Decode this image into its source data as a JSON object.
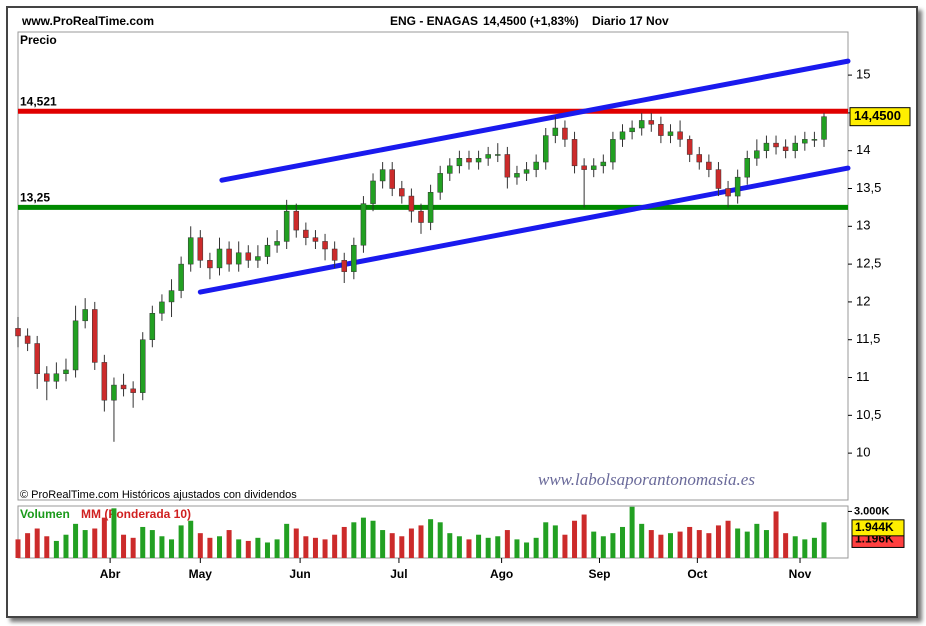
{
  "header": {
    "site": "www.ProRealTime.com",
    "instrument": "ENG - ENAGAS",
    "quote": "14,4500 (+1,83%)",
    "period": "Diario  17 Nov"
  },
  "chart_data": [
    {
      "type": "candlestick",
      "title": "Precio",
      "xlim": [
        0,
        86.5
      ],
      "xticks": [
        {
          "value": 9.6,
          "label": "Abr"
        },
        {
          "value": 19,
          "label": "May"
        },
        {
          "value": 29.4,
          "label": "Jun"
        },
        {
          "value": 39.7,
          "label": "Jul"
        },
        {
          "value": 50.4,
          "label": "Ago"
        },
        {
          "value": 60.6,
          "label": "Sep"
        },
        {
          "value": 70.8,
          "label": "Oct"
        },
        {
          "value": 81.5,
          "label": "Nov"
        }
      ],
      "ylim": [
        9.38,
        15.57
      ],
      "yticks": [
        10,
        {
          "value": 10.5,
          "label": "10,5"
        },
        11,
        {
          "value": 11.5,
          "label": "11,5"
        },
        12,
        {
          "value": 12.5,
          "label": "12,5"
        },
        13,
        {
          "value": 13.5,
          "label": "13,5"
        },
        14,
        {
          "value": 14.5,
          "label": "14,5"
        },
        15
      ],
      "open": [
        11.65,
        11.55,
        11.45,
        11.05,
        10.95,
        11.05,
        11.1,
        11.75,
        11.9,
        11.2,
        10.7,
        10.9,
        10.85,
        10.8,
        11.5,
        11.85,
        12.0,
        12.15,
        12.5,
        12.85,
        12.55,
        12.45,
        12.7,
        12.5,
        12.65,
        12.55,
        12.6,
        12.75,
        12.8,
        13.2,
        12.95,
        12.85,
        12.8,
        12.7,
        12.55,
        12.4,
        12.75,
        13.3,
        13.6,
        13.75,
        13.5,
        13.4,
        13.2,
        13.05,
        13.45,
        13.7,
        13.8,
        13.9,
        13.85,
        13.9,
        13.95,
        13.95,
        13.65,
        13.7,
        13.75,
        13.85,
        14.2,
        14.3,
        14.15,
        13.8,
        13.75,
        13.8,
        13.85,
        14.15,
        14.25,
        14.3,
        14.4,
        14.35,
        14.2,
        14.25,
        14.15,
        13.95,
        13.85,
        13.75,
        13.5,
        13.4,
        13.65,
        13.9,
        14.0,
        14.1,
        14.05,
        14.0,
        14.1,
        14.15,
        14.15
      ],
      "high": [
        11.8,
        11.65,
        11.55,
        11.15,
        11.2,
        11.25,
        11.95,
        12.05,
        12.0,
        11.3,
        11.0,
        11.05,
        10.95,
        11.6,
        11.95,
        12.1,
        12.3,
        12.6,
        13.0,
        12.95,
        12.65,
        12.85,
        12.8,
        12.8,
        12.75,
        12.75,
        12.85,
        12.95,
        13.35,
        13.3,
        13.05,
        12.95,
        12.9,
        12.8,
        12.65,
        12.85,
        13.4,
        13.7,
        13.85,
        13.85,
        13.6,
        13.5,
        13.3,
        13.55,
        13.8,
        13.9,
        14.0,
        14.0,
        14.0,
        14.05,
        14.1,
        14.05,
        13.8,
        13.85,
        13.95,
        14.3,
        14.45,
        14.4,
        14.25,
        13.9,
        13.9,
        13.95,
        14.25,
        14.35,
        14.4,
        14.5,
        14.5,
        14.45,
        14.35,
        14.4,
        14.2,
        14.05,
        13.95,
        13.85,
        13.6,
        13.75,
        14.0,
        14.15,
        14.2,
        14.2,
        14.15,
        14.2,
        14.25,
        14.25,
        14.5
      ],
      "low": [
        11.4,
        11.35,
        10.85,
        10.7,
        10.85,
        10.95,
        11.0,
        11.65,
        11.1,
        10.55,
        10.15,
        10.75,
        10.6,
        10.7,
        11.4,
        11.75,
        11.8,
        12.05,
        12.4,
        12.45,
        12.3,
        12.35,
        12.4,
        12.4,
        12.45,
        12.45,
        12.5,
        12.65,
        12.7,
        12.85,
        12.75,
        12.7,
        12.55,
        12.45,
        12.25,
        12.3,
        12.65,
        13.2,
        13.5,
        13.4,
        13.3,
        13.05,
        12.9,
        12.95,
        13.35,
        13.6,
        13.7,
        13.75,
        13.75,
        13.8,
        13.85,
        13.5,
        13.55,
        13.6,
        13.65,
        13.75,
        14.1,
        14.05,
        13.7,
        13.25,
        13.65,
        13.7,
        13.75,
        14.05,
        14.15,
        14.2,
        14.25,
        14.1,
        14.1,
        14.05,
        13.85,
        13.75,
        13.65,
        13.4,
        13.25,
        13.3,
        13.55,
        13.8,
        13.9,
        13.95,
        13.9,
        13.9,
        14.0,
        14.05,
        14.05
      ],
      "close": [
        11.55,
        11.45,
        11.05,
        10.95,
        11.05,
        11.1,
        11.75,
        11.9,
        11.2,
        10.7,
        10.9,
        10.85,
        10.8,
        11.5,
        11.85,
        12.0,
        12.15,
        12.5,
        12.85,
        12.55,
        12.45,
        12.7,
        12.5,
        12.65,
        12.55,
        12.6,
        12.75,
        12.8,
        13.2,
        12.95,
        12.85,
        12.8,
        12.7,
        12.55,
        12.4,
        12.75,
        13.3,
        13.6,
        13.75,
        13.5,
        13.4,
        13.2,
        13.05,
        13.45,
        13.7,
        13.8,
        13.9,
        13.85,
        13.9,
        13.95,
        13.95,
        13.65,
        13.7,
        13.75,
        13.85,
        14.2,
        14.3,
        14.15,
        13.8,
        13.75,
        13.8,
        13.85,
        14.15,
        14.25,
        14.3,
        14.4,
        14.35,
        14.2,
        14.25,
        14.15,
        13.95,
        13.85,
        13.75,
        13.5,
        13.4,
        13.65,
        13.9,
        14.0,
        14.1,
        14.05,
        14.0,
        14.1,
        14.15,
        14.15,
        14.45
      ],
      "up_color": "#22a022",
      "down_color": "#cc2b2b",
      "last": {
        "value": 14.45,
        "label": "14,4500"
      },
      "hlines": [
        {
          "value": 14.521,
          "label": "14,521",
          "color": "#e00000"
        },
        {
          "value": 13.25,
          "label": "13,25",
          "color": "#008a00"
        }
      ],
      "trendlines": [
        {
          "x": [
            21.25,
            86.5
          ],
          "y": [
            13.61,
            15.185
          ],
          "color": "#1a1aee"
        },
        {
          "x": [
            19,
            86.5
          ],
          "y": [
            12.13,
            13.77
          ],
          "color": "#1a1aee"
        }
      ],
      "note": "© ProRealTime.com Históricos ajustados con dividendos",
      "watermark": "www.labolsaporantonomasia.es"
    },
    {
      "type": "bar",
      "title": "Volumen",
      "subtitle": "MM (Ponderada 10)",
      "values": [
        1.2,
        1.6,
        1.9,
        1.4,
        1.1,
        1.5,
        2.2,
        1.8,
        1.9,
        2.6,
        3.2,
        1.5,
        1.3,
        2.0,
        1.8,
        1.4,
        1.2,
        2.1,
        2.4,
        1.6,
        1.3,
        1.4,
        1.8,
        1.2,
        1.1,
        1.3,
        1.0,
        1.2,
        2.2,
        1.9,
        1.4,
        1.3,
        1.2,
        1.5,
        2.0,
        2.3,
        2.6,
        2.4,
        1.8,
        1.6,
        1.4,
        1.9,
        2.1,
        2.5,
        2.3,
        1.6,
        1.4,
        1.2,
        1.5,
        1.3,
        1.4,
        1.8,
        1.2,
        1.0,
        1.3,
        2.3,
        2.1,
        1.5,
        2.4,
        2.8,
        1.7,
        1.4,
        1.6,
        2.0,
        3.3,
        2.2,
        1.8,
        1.5,
        1.6,
        1.7,
        2.0,
        1.8,
        1.6,
        2.1,
        2.4,
        1.9,
        1.7,
        2.2,
        1.8,
        3.0,
        1.6,
        1.4,
        1.2,
        1.3,
        2.3
      ],
      "ylim": [
        0,
        3.35
      ],
      "yticks": [
        {
          "value": 3,
          "label": "3.000K"
        }
      ],
      "markers": [
        {
          "value": 1.196,
          "label": "1.196K",
          "color": "#ff4040"
        },
        {
          "value": 1.944,
          "label": "1.944K",
          "color": "#ffee00"
        }
      ]
    }
  ]
}
